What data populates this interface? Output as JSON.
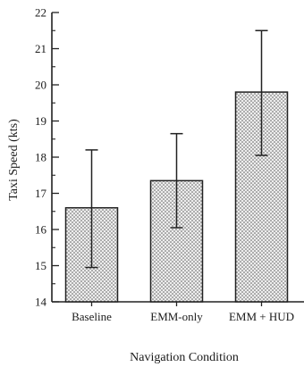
{
  "chart_data": {
    "type": "bar",
    "title": "",
    "xlabel": "Navigation Condition",
    "ylabel": "Taxi Speed (kts)",
    "ylim": [
      14,
      22
    ],
    "yticks": [
      "14",
      "15",
      "16",
      "17",
      "18",
      "19",
      "20",
      "21",
      "22"
    ],
    "grid": false,
    "legend": "none",
    "categories": [
      "Baseline",
      "EMM-only",
      "EMM + HUD"
    ],
    "values": [
      16.6,
      17.35,
      19.8
    ],
    "error_bars": {
      "lower": [
        14.95,
        16.05,
        18.05
      ],
      "upper": [
        18.2,
        18.65,
        21.5
      ]
    },
    "colors": {
      "bar_fill": "#d9d9d9",
      "stroke": "#222222",
      "dots": "#555555"
    }
  }
}
